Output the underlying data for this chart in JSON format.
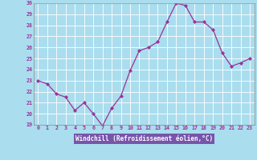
{
  "x": [
    0,
    1,
    2,
    3,
    4,
    5,
    6,
    7,
    8,
    9,
    10,
    11,
    12,
    13,
    14,
    15,
    16,
    17,
    18,
    19,
    20,
    21,
    22,
    23
  ],
  "y": [
    23.0,
    22.7,
    21.8,
    21.5,
    20.3,
    21.0,
    20.0,
    18.9,
    20.5,
    21.6,
    23.9,
    25.7,
    26.0,
    26.5,
    28.3,
    30.0,
    29.8,
    28.3,
    28.3,
    27.6,
    25.5,
    24.3,
    24.6,
    25.0
  ],
  "xlabel": "Windchill (Refroidissement éolien,°C)",
  "ylim": [
    19,
    30
  ],
  "xlim_min": -0.5,
  "xlim_max": 23.5,
  "yticks": [
    19,
    20,
    21,
    22,
    23,
    24,
    25,
    26,
    27,
    28,
    29,
    30
  ],
  "xticks": [
    0,
    1,
    2,
    3,
    4,
    5,
    6,
    7,
    8,
    9,
    10,
    11,
    12,
    13,
    14,
    15,
    16,
    17,
    18,
    19,
    20,
    21,
    22,
    23
  ],
  "line_color": "#993399",
  "marker_color": "#993399",
  "bg_plot": "#aaddee",
  "bg_fig": "#aaddee",
  "grid_color": "#ffffff",
  "label_color": "#993399",
  "tick_color": "#993399",
  "xlabel_bg": "#7b5fb5",
  "xlabel_fg": "#ffffff"
}
